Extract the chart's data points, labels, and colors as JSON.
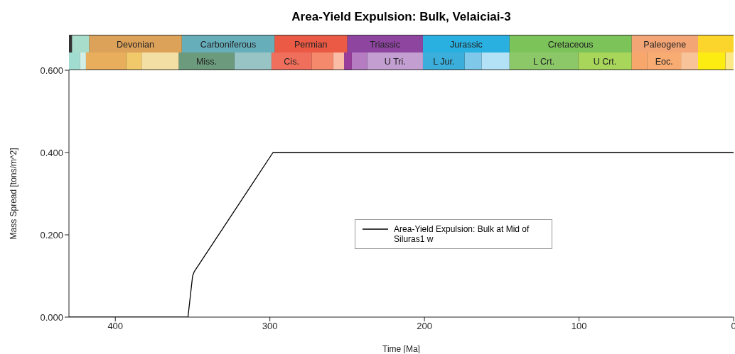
{
  "chart_data": [
    {
      "type": "bar",
      "title": "Area-Yield Expulsion: Bulk, Velaiciai-3",
      "orientation": "horizontal",
      "stacked": true,
      "categories": [
        null,
        null
      ],
      "xlim": [
        430,
        0
      ],
      "tick_labels": false,
      "series": [
        {
          "color": "#fcd52c",
          "values": [
            23,
            null
          ]
        },
        {
          "name": "Paleogene",
          "color": "#f4a575",
          "values": [
            43,
            null
          ]
        },
        {
          "name": "Cretaceous",
          "color": "#7cc35a",
          "values": [
            79,
            null
          ]
        },
        {
          "name": "Jurassic",
          "color": "#2ab0e0",
          "values": [
            56,
            null
          ]
        },
        {
          "name": "Triassic",
          "color": "#8e45a0",
          "values": [
            49,
            null
          ]
        },
        {
          "name": "Permian",
          "color": "#ea5a44",
          "values": [
            47,
            null
          ]
        },
        {
          "name": "Carboniferous",
          "color": "#67aebb",
          "values": [
            60,
            null
          ]
        },
        {
          "name": "Devonian",
          "color": "#dca25a",
          "values": [
            60,
            null
          ]
        },
        {
          "color": "#a8dccb",
          "values": [
            11,
            null
          ]
        },
        {
          "color": "#fde888",
          "values": [
            null,
            5.3
          ]
        },
        {
          "color": "#fcec12",
          "values": [
            null,
            17.7
          ]
        },
        {
          "color": "#f9c39a",
          "values": [
            null,
            11
          ]
        },
        {
          "name": "Eoc.",
          "color": "#f8ac72",
          "values": [
            null,
            22
          ]
        },
        {
          "color": "#f7a76c",
          "values": [
            null,
            10
          ]
        },
        {
          "name": "U Crt.",
          "color": "#a8d65a",
          "values": [
            null,
            34.5
          ]
        },
        {
          "name": "L Crt.",
          "color": "#8cc868",
          "values": [
            null,
            44.5
          ]
        },
        {
          "color": "#b3e1f5",
          "values": [
            null,
            18
          ]
        },
        {
          "color": "#80c8ea",
          "values": [
            null,
            11
          ]
        },
        {
          "name": "L Jur.",
          "color": "#3caedb",
          "values": [
            null,
            27
          ]
        },
        {
          "name": "U Tri.",
          "color": "#c39ed1",
          "values": [
            null,
            36
          ]
        },
        {
          "color": "#b67cc2",
          "values": [
            null,
            10
          ]
        },
        {
          "color": "#983d9a",
          "values": [
            null,
            5
          ]
        },
        {
          "color": "#fbbca5",
          "values": [
            null,
            7
          ]
        },
        {
          "color": "#f5896c",
          "values": [
            null,
            14
          ]
        },
        {
          "name": "Cis.",
          "color": "#ef6f5c",
          "values": [
            null,
            26
          ]
        },
        {
          "color": "#99c4c6",
          "values": [
            null,
            24
          ]
        },
        {
          "name": "Miss.",
          "color": "#6b9a7c",
          "values": [
            null,
            36
          ]
        },
        {
          "color": "#f3dfa3",
          "values": [
            null,
            24
          ]
        },
        {
          "color": "#f1c86a",
          "values": [
            null,
            10
          ]
        },
        {
          "color": "#e8ae5c",
          "values": [
            null,
            26
          ]
        },
        {
          "color": "#d2efe6",
          "values": [
            null,
            4
          ]
        },
        {
          "color": "#a0dccf",
          "values": [
            null,
            7
          ]
        }
      ]
    },
    {
      "type": "line",
      "xlabel": "Time [Ma]",
      "ylabel": "Mass Spread [tons/m^2]",
      "series": [
        {
          "name": "Area-Yield Expulsion: Bulk at Mid of Siluras1 w",
          "color": "#000000",
          "x": [
            430,
            353,
            350,
            349,
            298,
            0
          ],
          "values": [
            0,
            0,
            0.1,
            0.11,
            0.4,
            0.4
          ]
        }
      ],
      "xlim": [
        430,
        0
      ],
      "xticks": [
        400,
        300,
        200,
        100,
        0
      ],
      "ylim": [
        0,
        0.6
      ],
      "yticks": [
        {
          "value": 0,
          "label": "0.000"
        },
        {
          "value": 0.2,
          "label": "0.200"
        },
        {
          "value": 0.4,
          "label": "0.400"
        },
        {
          "value": 0.6,
          "label": "0.600"
        }
      ],
      "legend": "right",
      "marker": "none",
      "line_style": "solid"
    }
  ]
}
